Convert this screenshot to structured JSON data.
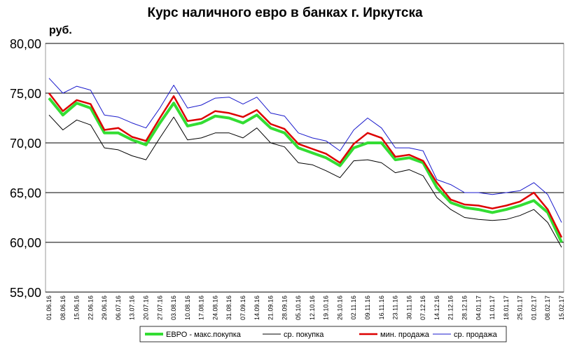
{
  "chart_data": {
    "type": "line",
    "title": "Курс наличного евро в банках г. Иркутска",
    "y_label": "руб.",
    "categories": [
      "01.06.16",
      "08.06.16",
      "15.06.16",
      "22.06.16",
      "29.06.16",
      "06.07.16",
      "13.07.16",
      "20.07.16",
      "27.07.16",
      "03.08.16",
      "10.08.16",
      "17.08.16",
      "24.08.16",
      "31.08.16",
      "07.09.16",
      "14.09.16",
      "21.09.16",
      "28.09.16",
      "05.10.16",
      "12.10.16",
      "19.10.16",
      "26.10.16",
      "02.11.16",
      "09.11.16",
      "16.11.16",
      "23.11.16",
      "30.11.16",
      "07.12.16",
      "14.12.16",
      "21.12.16",
      "28.12.16",
      "04.01.17",
      "11.01.17",
      "18.01.17",
      "25.01.17",
      "01.02.17",
      "08.02.17",
      "15.02.17"
    ],
    "series": [
      {
        "name": "ЕВРО - макс.покупка",
        "color": "#33dd33",
        "values": [
          74.5,
          72.8,
          74.0,
          73.5,
          71.0,
          71.0,
          70.3,
          69.8,
          72.0,
          74.0,
          71.7,
          72.0,
          72.7,
          72.5,
          72.0,
          72.8,
          71.5,
          71.0,
          69.5,
          69.0,
          68.5,
          67.7,
          69.5,
          70.0,
          70.0,
          68.3,
          68.5,
          68.0,
          65.5,
          64.0,
          63.5,
          63.3,
          63.0,
          63.3,
          63.7,
          64.2,
          63.0,
          60.0
        ]
      },
      {
        "name": "ср. покупка",
        "color": "#000000",
        "values": [
          72.8,
          71.3,
          72.3,
          71.8,
          69.5,
          69.3,
          68.7,
          68.3,
          70.5,
          72.6,
          70.3,
          70.5,
          71.0,
          71.0,
          70.5,
          71.5,
          70.0,
          69.6,
          68.0,
          67.8,
          67.2,
          66.5,
          68.2,
          68.3,
          68.0,
          67.0,
          67.3,
          66.7,
          64.5,
          63.3,
          62.5,
          62.3,
          62.2,
          62.3,
          62.7,
          63.3,
          62.0,
          59.5
        ]
      },
      {
        "name": "мин. продажа",
        "color": "#dd0000",
        "values": [
          75.0,
          73.2,
          74.3,
          73.9,
          71.3,
          71.5,
          70.6,
          70.2,
          72.5,
          74.7,
          72.2,
          72.4,
          73.2,
          73.0,
          72.6,
          73.3,
          71.9,
          71.4,
          69.9,
          69.4,
          68.9,
          68.0,
          69.9,
          71.0,
          70.5,
          68.6,
          68.8,
          68.2,
          66.0,
          64.3,
          63.8,
          63.7,
          63.4,
          63.7,
          64.1,
          65.0,
          63.3,
          60.5
        ]
      },
      {
        "name": "ср. продажа",
        "color": "#1a1acc",
        "values": [
          76.5,
          75.0,
          75.7,
          75.3,
          72.8,
          72.6,
          72.0,
          71.5,
          73.5,
          75.8,
          73.5,
          73.8,
          74.5,
          74.6,
          73.9,
          74.6,
          73.0,
          72.7,
          71.0,
          70.5,
          70.2,
          69.2,
          71.3,
          72.5,
          71.5,
          69.5,
          69.5,
          69.2,
          66.3,
          65.8,
          65.0,
          65.0,
          64.8,
          65.0,
          65.2,
          66.0,
          64.8,
          62.0
        ]
      }
    ],
    "ylim": [
      55,
      80
    ],
    "yticks": [
      {
        "value": 55,
        "label": "55,00"
      },
      {
        "value": 60,
        "label": "60,00"
      },
      {
        "value": 65,
        "label": "65,00"
      },
      {
        "value": 70,
        "label": "70,00"
      },
      {
        "value": 75,
        "label": "75,00"
      },
      {
        "value": 80,
        "label": "80,00"
      }
    ],
    "grid": true,
    "legend": "bottom"
  }
}
